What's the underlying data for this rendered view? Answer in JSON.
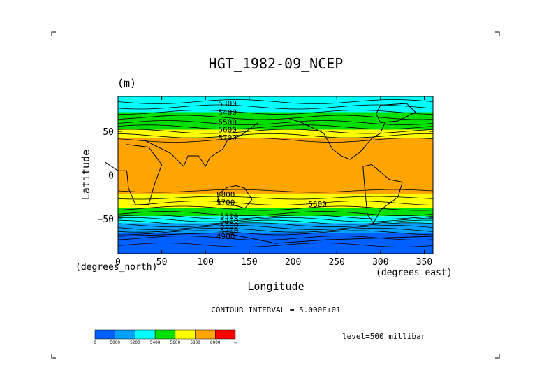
{
  "chart_data": {
    "type": "heatmap",
    "title": "HGT_1982-09_NCEP",
    "units": "(m)",
    "xlabel": "Longitude",
    "ylabel": "Latitude",
    "x_units_note": "(degrees_east)",
    "y_units_note": "(degrees_north)",
    "xlim": [
      0,
      360
    ],
    "ylim": [
      -90,
      90
    ],
    "x_ticks": [
      "0",
      "50",
      "100",
      "150",
      "200",
      "250",
      "300",
      "350"
    ],
    "x_tick_values": [
      0,
      50,
      100,
      150,
      200,
      250,
      300,
      350
    ],
    "y_ticks": [
      "50",
      "0",
      "−50"
    ],
    "y_tick_values": [
      50,
      0,
      -50
    ],
    "contour_interval_text": "CONTOUR INTERVAL = 5.000E+01",
    "level_text": "level=500 millibar",
    "contour_labels": [
      {
        "text": "5300",
        "lon": 125,
        "lat": 82
      },
      {
        "text": "5400",
        "lon": 125,
        "lat": 72
      },
      {
        "text": "5500",
        "lon": 125,
        "lat": 61
      },
      {
        "text": "5600",
        "lon": 125,
        "lat": 52
      },
      {
        "text": "5700",
        "lon": 125,
        "lat": 43
      },
      {
        "text": "5800",
        "lon": 123,
        "lat": -22
      },
      {
        "text": "5700",
        "lon": 123,
        "lat": -31
      },
      {
        "text": "5600",
        "lon": 228,
        "lat": -33
      },
      {
        "text": "5500",
        "lon": 127,
        "lat": -47
      },
      {
        "text": "5400",
        "lon": 127,
        "lat": -52
      },
      {
        "text": "5300",
        "lon": 127,
        "lat": -58
      },
      {
        "text": "5200",
        "lon": 127,
        "lat": -63
      },
      {
        "text": "4900",
        "lon": 123,
        "lat": -70
      }
    ],
    "bands": [
      {
        "lat_from": 90,
        "lat_to": 72,
        "color": "#00ffff"
      },
      {
        "lat_from": 72,
        "lat_to": 52,
        "color": "#00e000"
      },
      {
        "lat_from": 52,
        "lat_to": 42,
        "color": "#ffff00"
      },
      {
        "lat_from": 42,
        "lat_to": -22,
        "color": "#ffa500"
      },
      {
        "lat_from": -22,
        "lat_to": -38,
        "color": "#ffff00"
      },
      {
        "lat_from": -38,
        "lat_to": -47,
        "color": "#00e000"
      },
      {
        "lat_from": -47,
        "lat_to": -55,
        "color": "#00ffff"
      },
      {
        "lat_from": -55,
        "lat_to": -66,
        "color": "#00a0ff"
      },
      {
        "lat_from": -66,
        "lat_to": -90,
        "color": "#0060ff"
      }
    ],
    "colorbar": {
      "colors": [
        "#0060ff",
        "#00a0ff",
        "#00ffff",
        "#00e000",
        "#ffff00",
        "#ffa500",
        "#ff0000"
      ],
      "labels": [
        "0",
        "5000",
        "5200",
        "5400",
        "5600",
        "5800",
        "6000",
        "∞"
      ]
    }
  }
}
